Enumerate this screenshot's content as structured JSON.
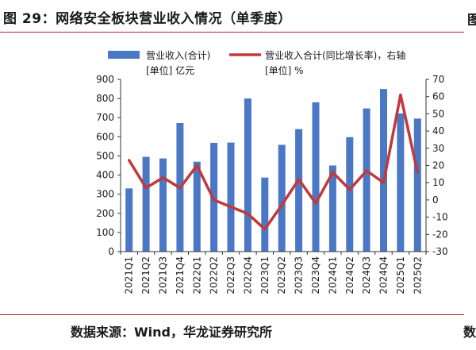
{
  "figure": {
    "title": "图 29：网络安全板块营业收入情况（单季度）",
    "source": "数据来源：Wind，华龙证券研究所",
    "edge_glyph_top": "图",
    "edge_glyph_bottom": "数"
  },
  "chart_data": {
    "type": "bar",
    "categories": [
      "2021Q1",
      "2021Q2",
      "2021Q3",
      "2021Q4",
      "2022Q1",
      "2022Q2",
      "2022Q3",
      "2022Q4",
      "2023Q1",
      "2023Q2",
      "2023Q3",
      "2023Q4",
      "2024Q1",
      "2024Q2",
      "2024Q3",
      "2024Q4",
      "2025Q1",
      "2025Q2"
    ],
    "series": [
      {
        "name": "营业收入(合计)",
        "legend_line2": "[单位] 亿元",
        "type": "bar",
        "axis": "left",
        "color": "#4a78c4",
        "values": [
          330,
          495,
          487,
          672,
          470,
          568,
          570,
          800,
          387,
          558,
          640,
          780,
          450,
          598,
          748,
          850,
          722,
          695
        ]
      },
      {
        "name": "营业收入合计(同比增长率)，右轴",
        "legend_line2": "[单位] %",
        "type": "line",
        "axis": "right",
        "color": "#c0393c",
        "values": [
          23,
          7,
          13,
          7,
          20,
          0,
          -4,
          -8,
          -17,
          -3,
          12,
          -2,
          16,
          6,
          17,
          10,
          61,
          16
        ]
      }
    ],
    "ylim_left": [
      0,
      900
    ],
    "yticks_left": [
      0,
      100,
      200,
      300,
      400,
      500,
      600,
      700,
      800,
      900
    ],
    "ylim_right": [
      -30,
      70
    ],
    "yticks_right": [
      -30,
      -20,
      -10,
      0,
      10,
      20,
      30,
      40,
      50,
      60,
      70
    ],
    "legend_position": "top",
    "grid": false
  }
}
